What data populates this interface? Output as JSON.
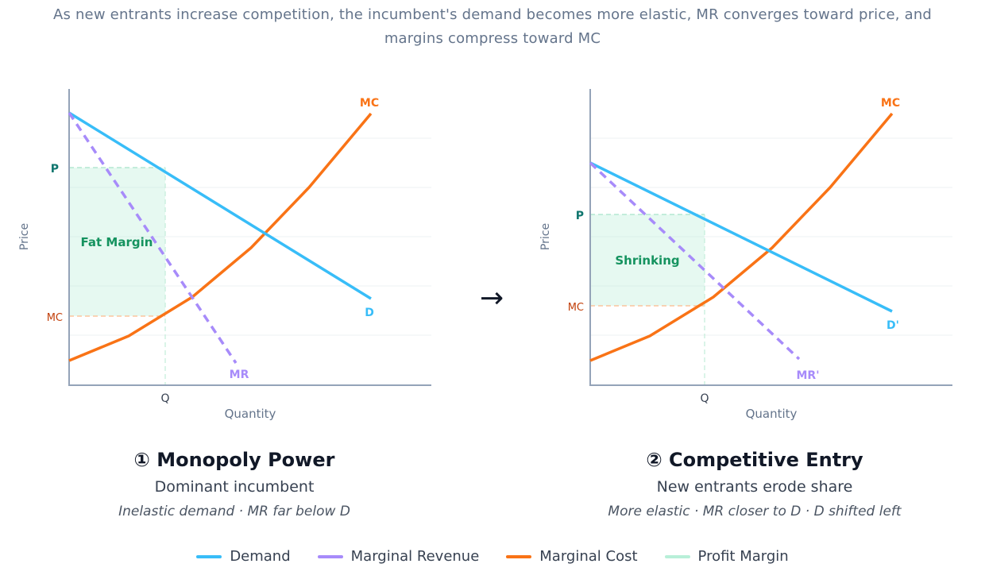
{
  "header": {
    "subtitle_line1": "As new entrants increase competition, the incumbent's demand becomes more elastic, MR converges toward price, and",
    "subtitle_line2": "margins compress toward MC"
  },
  "colors": {
    "demand": "#38bdf8",
    "marginal_revenue": "#a78bfa",
    "marginal_cost": "#f97316",
    "profit_margin": "#b8efd8",
    "axis": "#94a3b8",
    "grid": "#e5e7eb",
    "price_label": "#0f766e",
    "mc_label": "#c2410c"
  },
  "arrow_symbol": "→",
  "panels": [
    {
      "id": "monopoly",
      "heading": "① Monopoly Power",
      "subheading": "Dominant incumbent",
      "note": "Inelastic demand · MR far below D",
      "x_axis_label": "Quantity",
      "y_axis_label": "Price",
      "p_label": "P",
      "mc_level_label": "MC",
      "q_label": "Q",
      "margin_label": "Fat Margin",
      "demand_label": "D",
      "mr_label": "MR",
      "mc_curve_label": "MC"
    },
    {
      "id": "competitive",
      "heading": "② Competitive Entry",
      "subheading": "New entrants erode share",
      "note": "More elastic · MR closer to D · D shifted left",
      "x_axis_label": "Quantity",
      "y_axis_label": "Price",
      "p_label": "P",
      "mc_level_label": "MC",
      "q_label": "Q",
      "margin_label": "Shrinking",
      "demand_label": "D'",
      "mr_label": "MR'",
      "mc_curve_label": "MC"
    }
  ],
  "legend": [
    {
      "label": "Demand",
      "color": "#38bdf8"
    },
    {
      "label": "Marginal Revenue",
      "color": "#a78bfa"
    },
    {
      "label": "Marginal Cost",
      "color": "#f97316"
    },
    {
      "label": "Profit Margin",
      "color": "#b8efd8"
    }
  ]
}
